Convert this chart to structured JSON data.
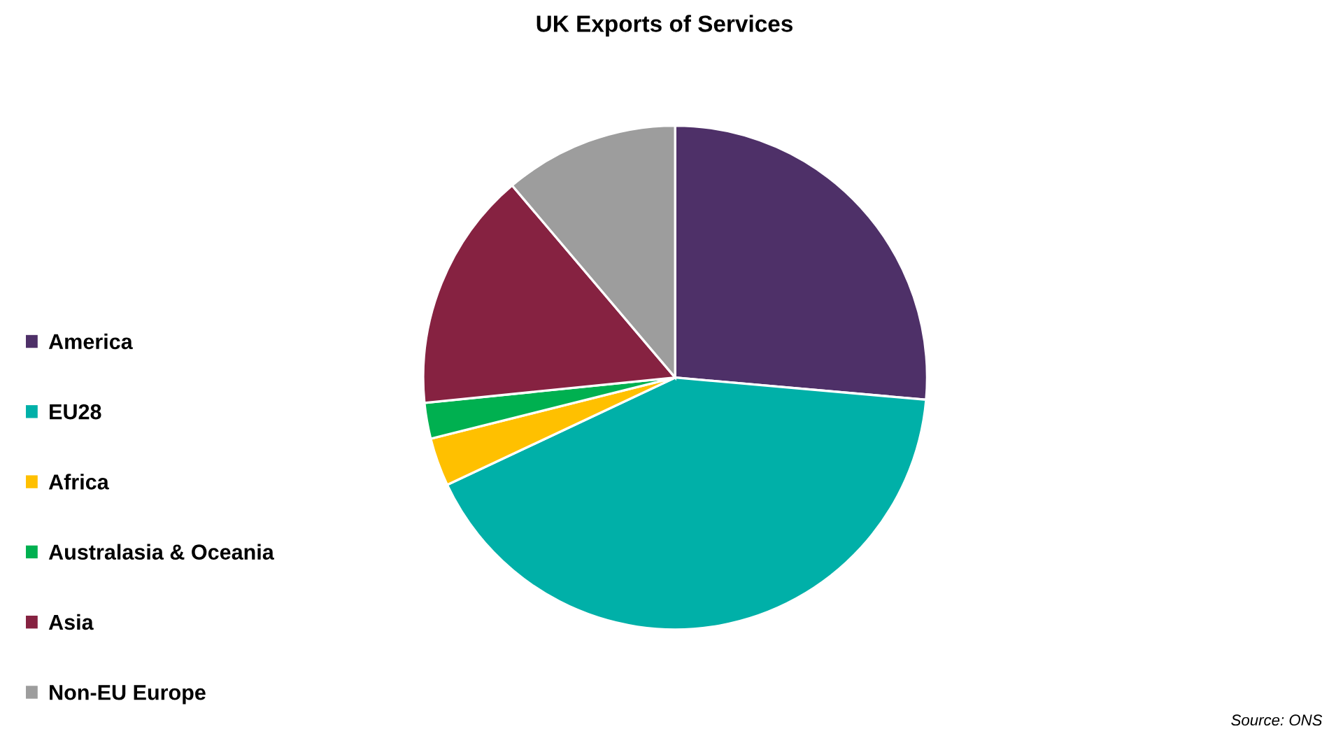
{
  "chart_data": {
    "type": "pie",
    "title": "UK Exports of Services",
    "categories": [
      "America",
      "EU28",
      "Africa",
      "Australasia & Oceania",
      "Asia",
      "Non-EU Europe"
    ],
    "values": [
      26.4,
      41.6,
      3.1,
      2.3,
      15.4,
      11.2
    ],
    "colors": [
      "#4e3068",
      "#00b0a8",
      "#ffc000",
      "#00b050",
      "#862241",
      "#9d9d9d"
    ],
    "legend": "left",
    "annotations": [
      "Source: ONS"
    ]
  }
}
